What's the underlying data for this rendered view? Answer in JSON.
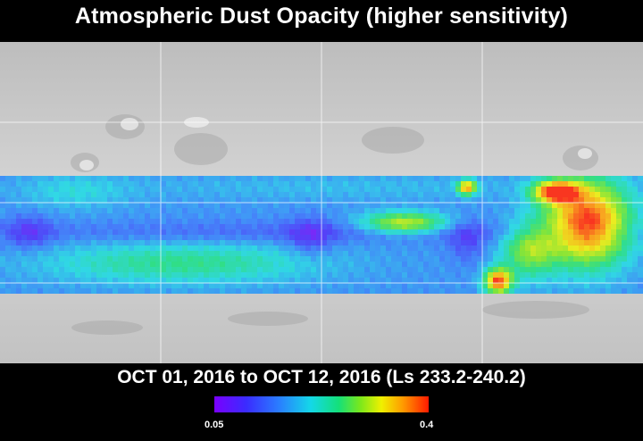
{
  "title": "Atmospheric Dust Opacity (higher sensitivity)",
  "date_range": "OCT 01, 2016 to OCT 12, 2016 (Ls 233.2-240.2)",
  "colorbar": {
    "min_label": "0.05",
    "max_label": "0.4",
    "stops": [
      "#7a00ff",
      "#3a2cff",
      "#2a7dff",
      "#14d8e8",
      "#14e07a",
      "#7ae81c",
      "#f0f000",
      "#ff9a00",
      "#ff1a00"
    ]
  },
  "map": {
    "background_icon": "mars-shaded-relief-map",
    "grid_lines": true
  }
}
